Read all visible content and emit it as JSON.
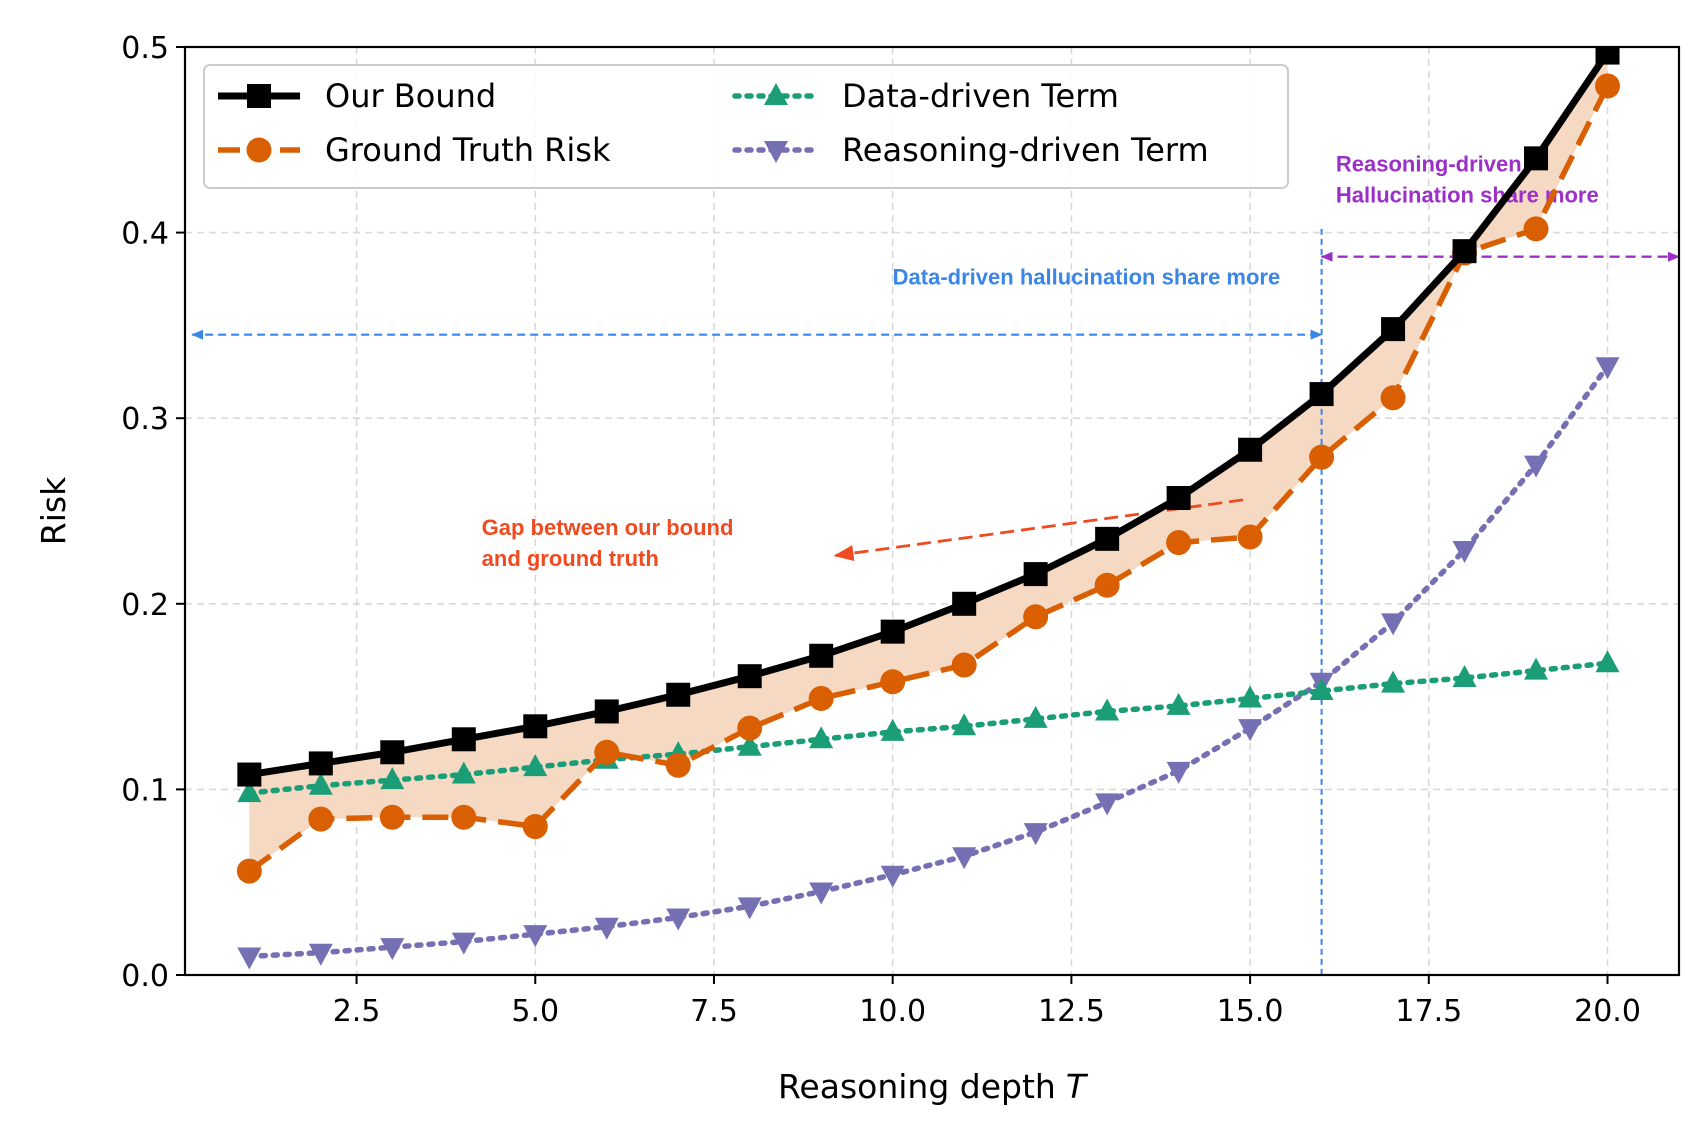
{
  "chart_data": {
    "type": "line",
    "xlabel": "Reasoning depth",
    "xlabel_var": "T",
    "ylabel": "Risk",
    "xlim": [
      0.1,
      21.0
    ],
    "ylim": [
      0.0,
      0.5
    ],
    "grid": true,
    "legend_position": "top-left",
    "xticks": [
      2.5,
      5.0,
      7.5,
      10.0,
      12.5,
      15.0,
      17.5,
      20.0
    ],
    "xtick_labels": [
      "2.5",
      "5.0",
      "7.5",
      "10.0",
      "12.5",
      "15.0",
      "17.5",
      "20.0"
    ],
    "yticks": [
      0.0,
      0.1,
      0.2,
      0.3,
      0.4,
      0.5
    ],
    "ytick_labels": [
      "0.0",
      "0.1",
      "0.2",
      "0.3",
      "0.4",
      "0.5"
    ],
    "x": [
      1,
      2,
      3,
      4,
      5,
      6,
      7,
      8,
      9,
      10,
      11,
      12,
      13,
      14,
      15,
      16,
      17,
      18,
      19,
      20
    ],
    "series": [
      {
        "name": "Our Bound",
        "color": "#000000",
        "marker": "square",
        "linestyle": "solid",
        "values": [
          0.108,
          0.114,
          0.12,
          0.127,
          0.134,
          0.142,
          0.151,
          0.161,
          0.172,
          0.185,
          0.2,
          0.216,
          0.235,
          0.257,
          0.283,
          0.313,
          0.348,
          0.39,
          0.44,
          0.497
        ]
      },
      {
        "name": "Ground Truth Risk",
        "color": "#d95f02",
        "marker": "circle",
        "linestyle": "dashed",
        "values": [
          0.056,
          0.084,
          0.085,
          0.085,
          0.08,
          0.12,
          0.113,
          0.133,
          0.149,
          0.158,
          0.167,
          0.193,
          0.21,
          0.233,
          0.236,
          0.279,
          0.311,
          0.389,
          0.402,
          0.479
        ]
      },
      {
        "name": "Data-driven Term",
        "color": "#1b9e77",
        "marker": "triangle-up",
        "linestyle": "dotted",
        "values": [
          0.098,
          0.102,
          0.105,
          0.108,
          0.112,
          0.116,
          0.119,
          0.123,
          0.127,
          0.131,
          0.134,
          0.138,
          0.142,
          0.145,
          0.149,
          0.153,
          0.157,
          0.16,
          0.164,
          0.168
        ]
      },
      {
        "name": "Reasoning-driven Term",
        "color": "#7570b3",
        "marker": "triangle-down",
        "linestyle": "dotted",
        "values": [
          0.01,
          0.012,
          0.015,
          0.018,
          0.022,
          0.026,
          0.031,
          0.037,
          0.045,
          0.054,
          0.064,
          0.077,
          0.093,
          0.11,
          0.133,
          0.158,
          0.19,
          0.229,
          0.275,
          0.328
        ]
      }
    ],
    "gap_fill_color": "#f6d9c3",
    "divider": {
      "x": 16,
      "color": "#3a86e8"
    },
    "annotations": [
      {
        "id": "data-driven",
        "lines": [
          "Data-driven hallucination share more"
        ],
        "color": "#3a86e8",
        "arrow_from": [
          0.2,
          0.345
        ],
        "arrow_to": [
          16.0,
          0.345
        ],
        "text_at": [
          10.0,
          0.372
        ]
      },
      {
        "id": "reasoning-driven",
        "lines": [
          "Reasoning-driven",
          "Hallucination share more"
        ],
        "color": "#9b30c8",
        "arrow_from": [
          16.0,
          0.387
        ],
        "arrow_to": [
          21.0,
          0.387
        ],
        "text_at": [
          16.2,
          0.433
        ]
      },
      {
        "id": "gap",
        "lines": [
          "Gap between our bound",
          "and ground truth"
        ],
        "color": "#f04a20",
        "arrow_from": [
          14.9,
          0.256
        ],
        "arrow_to": [
          9.2,
          0.226
        ],
        "text_at": [
          4.25,
          0.237
        ]
      }
    ]
  }
}
